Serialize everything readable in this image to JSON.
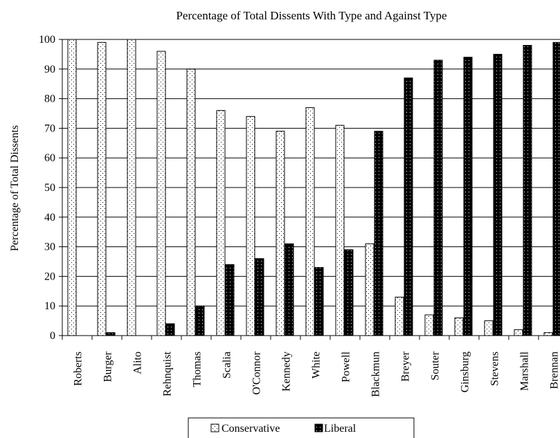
{
  "chart_data": {
    "type": "bar",
    "title": "Percentage of Total Dissents With Type and Against Type",
    "xlabel": "",
    "ylabel": "Percentage of Total Dissents",
    "ylim": [
      0,
      100
    ],
    "yticks": [
      0,
      10,
      20,
      30,
      40,
      50,
      60,
      70,
      80,
      90,
      100
    ],
    "grid": true,
    "legend_position": "bottom",
    "categories": [
      "Roberts",
      "Burger",
      "Alito",
      "Rehnquist",
      "Thomas",
      "Scalia",
      "O'Connor",
      "Kennedy",
      "White",
      "Powell",
      "Blackmun",
      "Breyer",
      "Souter",
      "Ginsburg",
      "Stevens",
      "Marshall",
      "Brennan"
    ],
    "series": [
      {
        "name": "Conservative",
        "color": "#ffffff",
        "pattern": "dotted",
        "values": [
          100,
          99,
          100,
          96,
          90,
          76,
          74,
          69,
          77,
          71,
          31,
          13,
          7,
          6,
          5,
          2,
          1
        ]
      },
      {
        "name": "Liberal",
        "color": "#000000",
        "pattern": "solid-speckled",
        "values": [
          0,
          1,
          0,
          4,
          10,
          24,
          26,
          31,
          23,
          29,
          69,
          87,
          93,
          94,
          95,
          98,
          99
        ]
      }
    ]
  }
}
